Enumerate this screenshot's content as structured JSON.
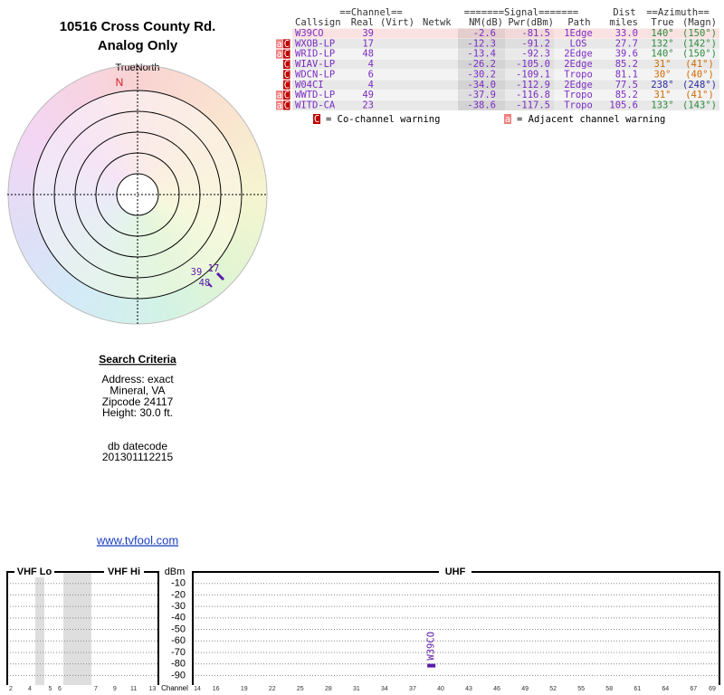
{
  "header": {
    "address": "10516 Cross County Rd.",
    "mode": "Analog Only"
  },
  "polar": {
    "north_label": "TrueNorth",
    "n": "N",
    "markers": [
      "39",
      "17",
      "48"
    ]
  },
  "criteria": {
    "title": "Search Criteria",
    "lines": [
      "Address: exact",
      "Mineral, VA",
      "Zipcode 24117",
      "Height: 30.0 ft."
    ],
    "datecode_label": "db datecode",
    "datecode": "201301112215"
  },
  "link": "www.tvfool.com",
  "table": {
    "group_headers": [
      "==Channel==",
      "=======Signal=======",
      "Dist",
      "==Azimuth=="
    ],
    "columns": [
      "Callsign",
      "Real",
      "(Virt)",
      "Netwk",
      "NM(dB)",
      "Pwr(dBm)",
      "Path",
      "miles",
      "True",
      "(Magn)"
    ],
    "rows": [
      {
        "flags": [],
        "callsign": "W39CO",
        "real": "39",
        "nm": "-2.6",
        "pwr": "-81.5",
        "path": "1Edge",
        "miles": "33.0",
        "true": "140°",
        "magn": "(150°)",
        "az_color": "#2a8a3a"
      },
      {
        "flags": [
          "a",
          "C"
        ],
        "callsign": "WXOB-LP",
        "real": "17",
        "nm": "-12.3",
        "pwr": "-91.2",
        "path": "LOS",
        "miles": "27.7",
        "true": "132°",
        "magn": "(142°)",
        "az_color": "#2a8a3a"
      },
      {
        "flags": [
          "a",
          "C"
        ],
        "callsign": "WRID-LP",
        "real": "48",
        "nm": "-13.4",
        "pwr": "-92.3",
        "path": "2Edge",
        "miles": "39.6",
        "true": "140°",
        "magn": "(150°)",
        "az_color": "#2a8a3a"
      },
      {
        "flags": [
          "C"
        ],
        "callsign": "WIAV-LP",
        "real": "4",
        "nm": "-26.2",
        "pwr": "-105.0",
        "path": "2Edge",
        "miles": "85.2",
        "true": "31°",
        "magn": "(41°)",
        "az_color": "#d06a00"
      },
      {
        "flags": [
          "C"
        ],
        "callsign": "WDCN-LP",
        "real": "6",
        "nm": "-30.2",
        "pwr": "-109.1",
        "path": "Tropo",
        "miles": "81.1",
        "true": "30°",
        "magn": "(40°)",
        "az_color": "#d06a00"
      },
      {
        "flags": [
          "C"
        ],
        "callsign": "W04CI",
        "real": "4",
        "nm": "-34.0",
        "pwr": "-112.9",
        "path": "2Edge",
        "miles": "77.5",
        "true": "238°",
        "magn": "(248°)",
        "az_color": "#2a2aa0"
      },
      {
        "flags": [
          "a",
          "C"
        ],
        "callsign": "WWTD-LP",
        "real": "49",
        "nm": "-37.9",
        "pwr": "-116.8",
        "path": "Tropo",
        "miles": "85.2",
        "true": "31°",
        "magn": "(41°)",
        "az_color": "#d06a00"
      },
      {
        "flags": [
          "a",
          "C"
        ],
        "callsign": "WITD-CA",
        "real": "23",
        "nm": "-38.6",
        "pwr": "-117.5",
        "path": "Tropo",
        "miles": "105.6",
        "true": "133°",
        "magn": "(143°)",
        "az_color": "#2a8a3a"
      }
    ]
  },
  "legend": [
    {
      "icon": "C",
      "text": "= Co-channel warning"
    },
    {
      "icon": "a",
      "text": "= Adjacent channel warning"
    }
  ],
  "spectrum": {
    "bands": [
      "VHF Lo",
      "VHF Hi",
      "UHF"
    ],
    "y_label": "dBm",
    "x_label": "Channel",
    "ylim": [
      0,
      -96
    ],
    "yticks": [
      -10,
      -20,
      -30,
      -40,
      -50,
      -60,
      -70,
      -80,
      -90
    ],
    "vhf_lo_ticks": [
      2,
      4,
      5,
      6
    ],
    "vhf_hi_ticks": [
      7,
      9,
      11,
      13
    ],
    "uhf_xlim": [
      14,
      69
    ],
    "uhf_ticks": [
      14,
      16,
      19,
      22,
      25,
      28,
      31,
      34,
      37,
      40,
      43,
      46,
      49,
      52,
      55,
      58,
      61,
      64,
      67,
      69
    ],
    "bars": [
      {
        "name": "W39CO",
        "channel": 39,
        "value": -81.5,
        "color": "#5a1aa8"
      }
    ]
  }
}
